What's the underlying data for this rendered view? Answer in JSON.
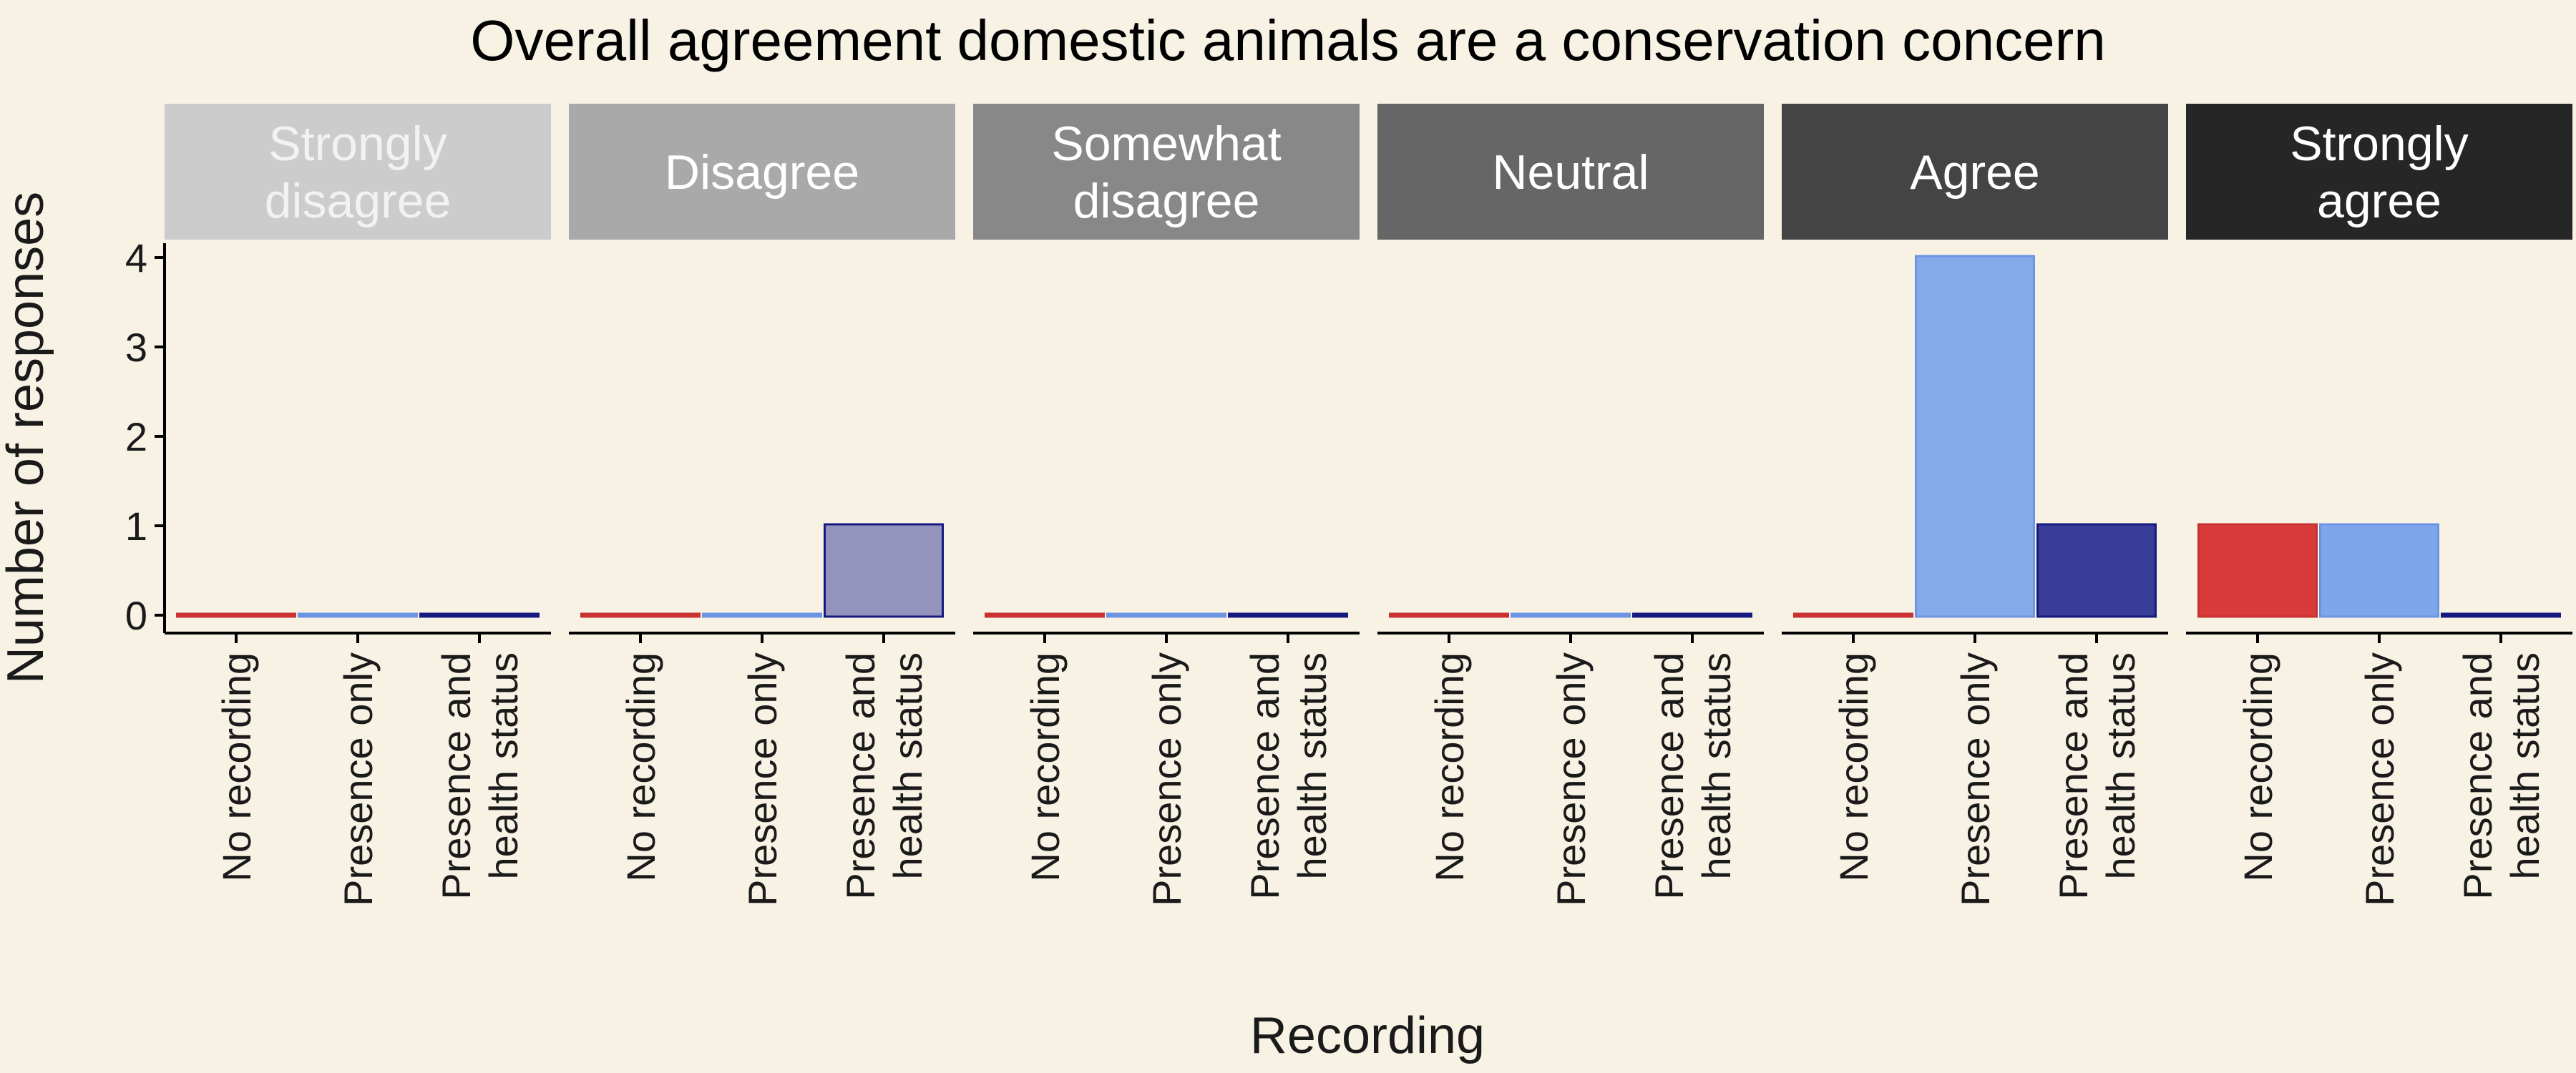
{
  "chart_data": {
    "type": "bar",
    "title": "Overall agreement domestic animals are a conservation concern",
    "xlabel": "Recording",
    "ylabel": "Number of responses",
    "ylim": [
      0,
      4
    ],
    "yticks": [
      0,
      1,
      2,
      3,
      4
    ],
    "categories": [
      "No recording",
      "Presence only",
      "Presence and health status"
    ],
    "category_label_lines": [
      [
        "No recording"
      ],
      [
        "Presence only"
      ],
      [
        "Presence and",
        "health status"
      ]
    ],
    "category_colors": {
      "No recording": {
        "fill": "#D73B3B",
        "stroke": "#C93030"
      },
      "Presence only": {
        "fill": "#7EA6EA",
        "stroke": "#6B94E3"
      },
      "Presence and health status": {
        "fill": "#2F3393",
        "stroke": "#141A82"
      }
    },
    "facet_fill_alpha": {
      "Strongly disagree": 1.0,
      "Disagree": 0.5,
      "Somewhat disagree": 0.65,
      "Neutral": 0.75,
      "Agree": 0.95,
      "Strongly agree": 1.0
    },
    "facets": [
      {
        "name": "Strongly disagree",
        "label_lines": [
          "Strongly",
          "disagree"
        ],
        "strip_fill": "#CCCCCC",
        "strip_text": "#F2F2F2",
        "values": [
          0,
          0,
          0
        ]
      },
      {
        "name": "Disagree",
        "label_lines": [
          "Disagree"
        ],
        "strip_fill": "#A9A9A9",
        "strip_text": "#FFFFFF",
        "values": [
          0,
          0,
          1
        ]
      },
      {
        "name": "Somewhat disagree",
        "label_lines": [
          "Somewhat",
          "disagree"
        ],
        "strip_fill": "#888888",
        "strip_text": "#FFFFFF",
        "values": [
          0,
          0,
          0
        ]
      },
      {
        "name": "Neutral",
        "label_lines": [
          "Neutral"
        ],
        "strip_fill": "#666666",
        "strip_text": "#FFFFFF",
        "values": [
          0,
          0,
          0
        ]
      },
      {
        "name": "Agree",
        "label_lines": [
          "Agree"
        ],
        "strip_fill": "#444444",
        "strip_text": "#FFFFFF",
        "values": [
          0,
          4,
          1
        ]
      },
      {
        "name": "Strongly agree",
        "label_lines": [
          "Strongly",
          "agree"
        ],
        "strip_fill": "#262626",
        "strip_text": "#FFFFFF",
        "values": [
          1,
          1,
          0
        ]
      }
    ],
    "legend": "none",
    "grid": false
  }
}
